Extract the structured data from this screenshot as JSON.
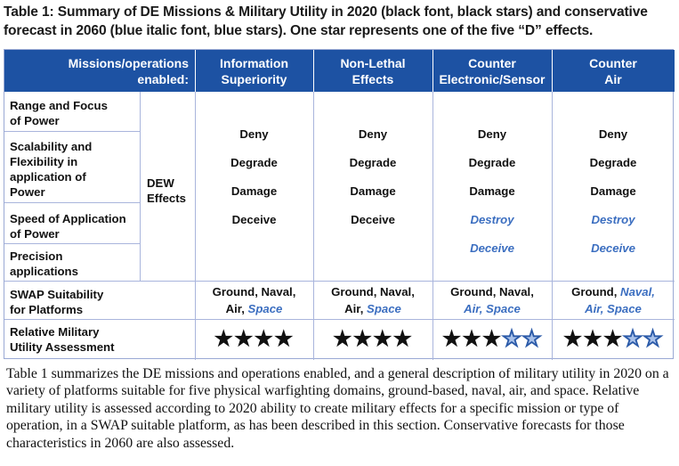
{
  "title": "Table 1: Summary of DE Missions & Military Utility in 2020 (black font, black stars) and conservative forecast in 2060 (blue italic font, blue stars). One star represents one of the five “D” effects.",
  "table": {
    "corner_header": [
      "Missions/operations",
      "enabled:"
    ],
    "columns": [
      {
        "line1": "Information",
        "line2": "Superiority"
      },
      {
        "line1": "Non-Lethal",
        "line2": "Effects"
      },
      {
        "line1": "Counter",
        "line2": "Electronic/Sensor"
      },
      {
        "line1": "Counter",
        "line2": "Air"
      }
    ],
    "row_labels": [
      [
        "Range and Focus",
        "of Power"
      ],
      [
        "Scalability and",
        "Flexibility in",
        "application of",
        "Power"
      ],
      [
        "Speed of Application",
        "of Power"
      ],
      [
        "Precision",
        "applications"
      ]
    ],
    "dew_label": [
      "DEW",
      "Effects"
    ],
    "effects": [
      {
        "items": [
          {
            "text": "Deny",
            "forecast": false
          },
          {
            "text": "Degrade",
            "forecast": false
          },
          {
            "text": "Damage",
            "forecast": false
          },
          {
            "text": "Deceive",
            "forecast": false
          }
        ]
      },
      {
        "items": [
          {
            "text": "Deny",
            "forecast": false
          },
          {
            "text": "Degrade",
            "forecast": false
          },
          {
            "text": "Damage",
            "forecast": false
          },
          {
            "text": "Deceive",
            "forecast": false
          }
        ]
      },
      {
        "items": [
          {
            "text": "Deny",
            "forecast": false
          },
          {
            "text": "Degrade",
            "forecast": false
          },
          {
            "text": "Damage",
            "forecast": false
          },
          {
            "text": "Destroy",
            "forecast": true
          },
          {
            "text": "Deceive",
            "forecast": true
          }
        ]
      },
      {
        "items": [
          {
            "text": "Deny",
            "forecast": false
          },
          {
            "text": "Degrade",
            "forecast": false
          },
          {
            "text": "Damage",
            "forecast": false
          },
          {
            "text": "Destroy",
            "forecast": true
          },
          {
            "text": "Deceive",
            "forecast": true
          }
        ]
      }
    ],
    "swap_label": [
      "SWAP Suitability",
      "for Platforms"
    ],
    "swap": [
      {
        "line1": [
          {
            "text": "Ground, Naval,",
            "forecast": false
          }
        ],
        "line2": [
          {
            "text": "Air, ",
            "forecast": false
          },
          {
            "text": "Space",
            "forecast": true
          }
        ]
      },
      {
        "line1": [
          {
            "text": "Ground, Naval,",
            "forecast": false
          }
        ],
        "line2": [
          {
            "text": "Air, ",
            "forecast": false
          },
          {
            "text": "Space",
            "forecast": true
          }
        ]
      },
      {
        "line1": [
          {
            "text": "Ground, Naval,",
            "forecast": false
          }
        ],
        "line2": [
          {
            "text": "Air, Space",
            "forecast": true
          }
        ]
      },
      {
        "line1": [
          {
            "text": "Ground, ",
            "forecast": false
          },
          {
            "text": "Naval,",
            "forecast": true
          }
        ],
        "line2": [
          {
            "text": "Air, Space",
            "forecast": true
          }
        ]
      }
    ],
    "utility_label": [
      "Relative Military",
      "Utility Assessment"
    ],
    "utility": [
      {
        "black_stars": 4,
        "blue_stars": 0
      },
      {
        "black_stars": 4,
        "blue_stars": 0
      },
      {
        "black_stars": 3,
        "blue_stars": 2
      },
      {
        "black_stars": 3,
        "blue_stars": 2
      }
    ],
    "colors": {
      "header_bg": "#1d52a3",
      "forecast_text": "#3b6ec0",
      "forecast_star": "#a8c1ea",
      "grid": "#a9b5dc"
    }
  },
  "paragraph": "Table 1 summarizes the DE missions and operations enabled, and a general description of military utility in 2020 on a variety of platforms suitable for five physical warfighting domains, ground-based, naval, air, and space. Relative military utility is assessed according to 2020 ability to create military effects for a specific mission or type of operation, in a SWAP suitable platform, as has been described in this section. Conservative forecasts for those characteristics in 2060 are also assessed."
}
